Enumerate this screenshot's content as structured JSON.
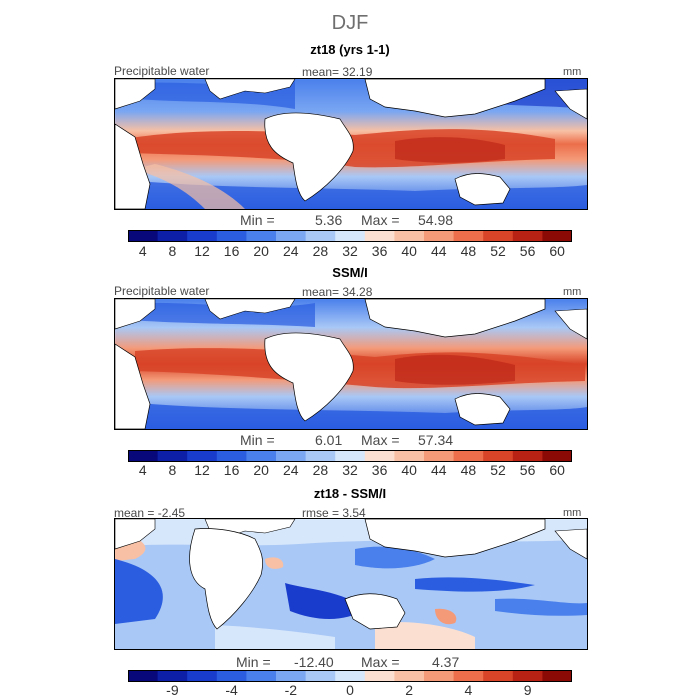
{
  "season": "DJF",
  "panels": [
    {
      "title": "zt18 (yrs 1-1)",
      "label_left": "Precipitable water",
      "label_mid": "mean=  32.19",
      "units": "mm",
      "min_label": "Min =",
      "min_value": "5.36",
      "max_label": "Max =",
      "max_value": "54.98"
    },
    {
      "title": "SSM/I",
      "label_left": "Precipitable water",
      "label_mid": "mean=  34.28",
      "units": "mm",
      "min_label": "Min =",
      "min_value": "6.01",
      "max_label": "Max =",
      "max_value": "57.34"
    },
    {
      "title": "zt18 - SSM/I",
      "label_left": "mean =  -2.45",
      "label_mid": "rmse =   3.54",
      "units": "mm",
      "min_label": "Min =",
      "min_value": "-12.40",
      "max_label": "Max =",
      "max_value": "4.37"
    }
  ],
  "colorbar_abs": {
    "colors": [
      "#08087a",
      "#0c1fa6",
      "#1a3ccc",
      "#2a5de0",
      "#4a80ec",
      "#7aa6f2",
      "#a9c8f6",
      "#d6e6fb",
      "#fbe0d2",
      "#f8c0a4",
      "#f49a78",
      "#ec6e4a",
      "#d84428",
      "#b82214",
      "#8c0a06"
    ],
    "ticks": [
      "4",
      "8",
      "12",
      "16",
      "20",
      "24",
      "28",
      "32",
      "36",
      "40",
      "44",
      "48",
      "52",
      "56",
      "60"
    ]
  },
  "colorbar_diff": {
    "colors": [
      "#08087a",
      "#0c1fa6",
      "#1a3ccc",
      "#2a5de0",
      "#4a80ec",
      "#7aa6f2",
      "#a9c8f6",
      "#d6e6fb",
      "#fbe0d2",
      "#f8c0a4",
      "#f49a78",
      "#ec6e4a",
      "#d84428",
      "#b82214",
      "#8c0a06"
    ],
    "ticks": [
      "-9",
      "-4",
      "-2",
      "0",
      "2",
      "4",
      "9"
    ]
  }
}
